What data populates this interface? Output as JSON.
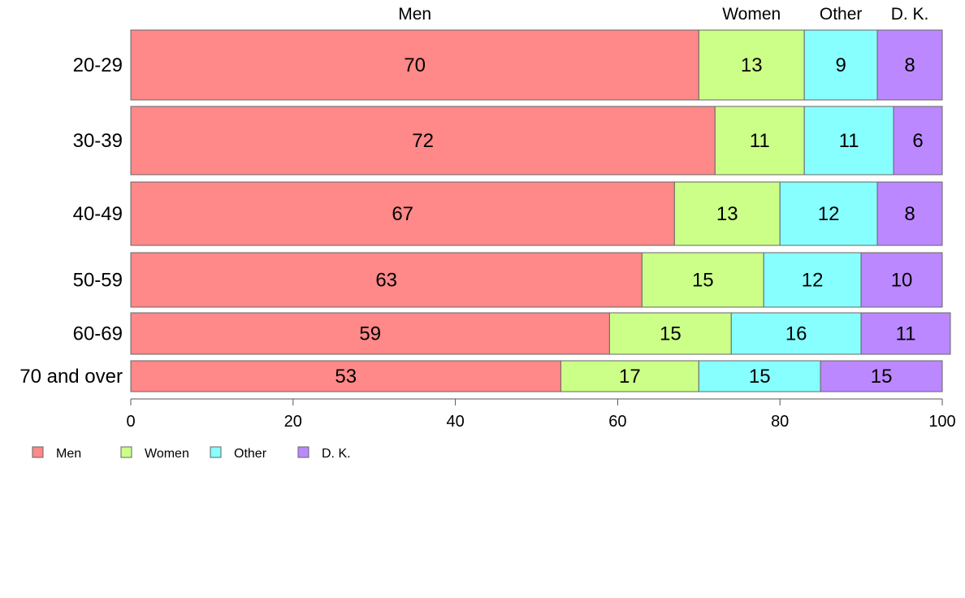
{
  "chart_data": {
    "type": "bar",
    "orientation": "horizontal",
    "stacked": true,
    "categories": [
      "20-29",
      "30-39",
      "40-49",
      "50-59",
      "60-69",
      "70 and over"
    ],
    "series": [
      {
        "name": "Men",
        "color": "#ff8888",
        "values": [
          70,
          72,
          67,
          63,
          59,
          53
        ]
      },
      {
        "name": "Women",
        "color": "#ccff88",
        "values": [
          13,
          11,
          13,
          15,
          15,
          17
        ]
      },
      {
        "name": "Other",
        "color": "#88ffff",
        "values": [
          9,
          11,
          12,
          12,
          16,
          15
        ]
      },
      {
        "name": "D. K.",
        "color": "#bb88ff",
        "values": [
          8,
          6,
          8,
          10,
          11,
          15
        ]
      }
    ],
    "top_labels": [
      "Men",
      "Women",
      "Other",
      "D. K."
    ],
    "xlim": [
      0,
      100
    ],
    "xticks": [
      0,
      20,
      40,
      60,
      80,
      100
    ],
    "grid": false,
    "legend_position": "bottom-left"
  }
}
